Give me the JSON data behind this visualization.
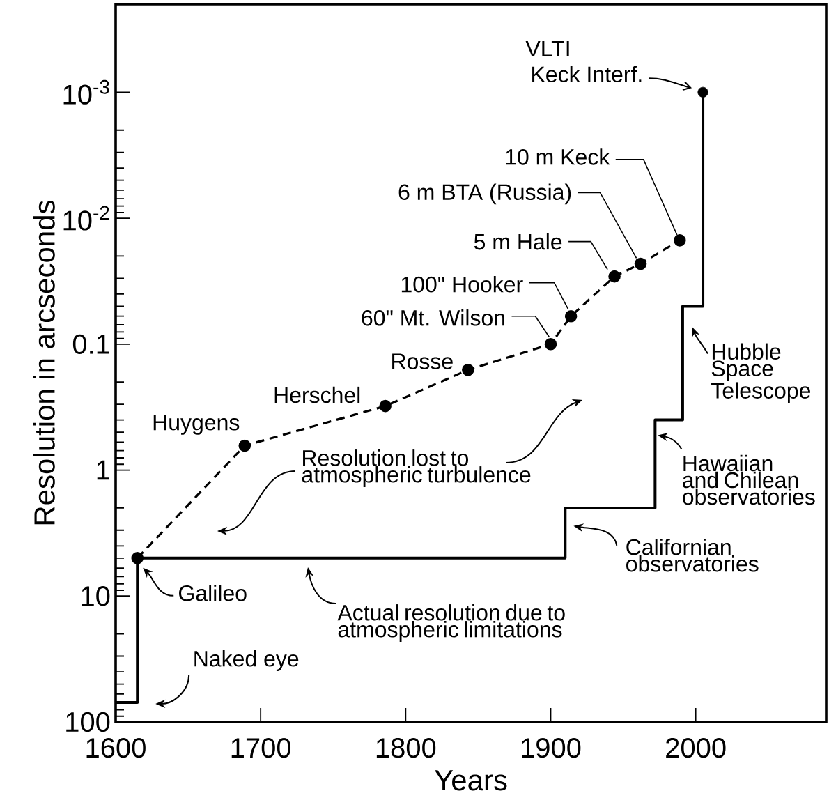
{
  "chart_data": {
    "type": "line",
    "xlabel": "Years",
    "ylabel": "Resolution in arcseconds",
    "xlim": [
      1600,
      2090
    ],
    "xticks": [
      1600,
      1700,
      1800,
      1900,
      2000
    ],
    "ylim": [
      100,
      0.0002
    ],
    "log": "y",
    "yticks": [
      100,
      10,
      1,
      0.1,
      {
        "value": 0.01,
        "label": "10$^{-2}$"
      },
      {
        "value": 0.001,
        "label": "10$^{-3}$"
      }
    ],
    "series": [
      {
        "color": "#000000",
        "line_style": "dashed",
        "marker": "circle",
        "x": [
          1615,
          1689,
          1786,
          1843,
          1900,
          1914,
          1944,
          1962,
          1989
        ],
        "values": [
          5,
          0.64,
          0.31,
          0.16,
          0.1,
          0.06,
          0.029,
          0.023,
          0.015
        ]
      },
      {
        "type": "step",
        "color": "#000000",
        "line_style": "solid",
        "marker": "none",
        "x": [
          1600,
          1615,
          1910,
          1972,
          1991,
          2005
        ],
        "values": [
          70,
          5,
          2,
          0.4,
          0.05,
          0.001
        ]
      },
      {
        "type": "scatter",
        "color": "#000000",
        "marker": "circle",
        "x": [
          2005
        ],
        "values": [
          0.001
        ]
      }
    ],
    "annotations": [
      {
        "text": "Naked eye",
        "x": 1615,
        "y": 70
      },
      {
        "text": "Galileo",
        "x": 1615,
        "y": 5
      },
      {
        "text": "Huygens",
        "x": 1689,
        "y": 0.64
      },
      {
        "text": "Herschel",
        "x": 1786,
        "y": 0.31
      },
      {
        "text": "Rosse",
        "x": 1843,
        "y": 0.16
      },
      {
        "text": "60\" Mt. Wilson",
        "x": 1900,
        "y": 0.1
      },
      {
        "text": "100\" Hooker",
        "x": 1914,
        "y": 0.06
      },
      {
        "text": "5 m Hale",
        "x": 1944,
        "y": 0.029
      },
      {
        "text": "6 m BTA (Russia)",
        "x": 1962,
        "y": 0.023
      },
      {
        "text": "10 m Keck",
        "x": 1989,
        "y": 0.015
      },
      "VLTI",
      {
        "text": "Keck Interf.",
        "x": 2005,
        "y": 0.001
      },
      {
        "text": "Hubble Space Telescope",
        "x": 1991,
        "y": 0.05
      },
      {
        "text": "Hawaiian and Chilean observatories",
        "x": 1972,
        "y": 0.4
      },
      {
        "text": "Californian observatories",
        "x": 1910,
        "y": 3
      },
      "Resolution lost to atmospheric turbulence",
      "Actual resolution due to atmospheric limitations"
    ]
  }
}
